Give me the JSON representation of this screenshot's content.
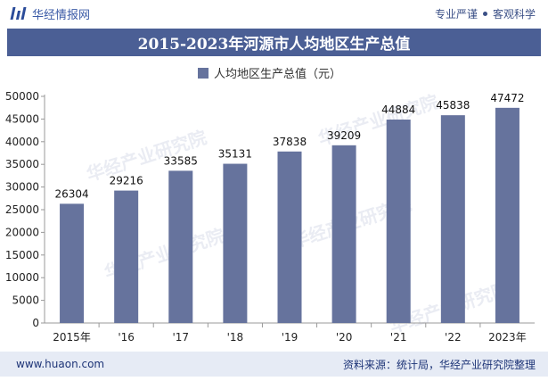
{
  "header": {
    "site_name": "华经情报网",
    "tagline_left": "专业严谨",
    "tagline_right": "客观科学"
  },
  "chart_data": {
    "type": "bar",
    "title": "2015-2023年河源市人均地区生产总值",
    "legend": "人均地区生产总值（元）",
    "legend_position": "top-center",
    "categories": [
      "2015年",
      "'16",
      "'17",
      "'18",
      "'19",
      "'20",
      "'21",
      "'22",
      "2023年"
    ],
    "series": [
      {
        "name": "人均地区生产总值（元）",
        "values": [
          26304,
          29216,
          33585,
          35131,
          37838,
          39209,
          44884,
          45838,
          47472
        ]
      }
    ],
    "ylim": [
      0,
      50000
    ],
    "yticks": [
      0,
      5000,
      10000,
      15000,
      20000,
      25000,
      30000,
      35000,
      40000,
      45000,
      50000
    ],
    "grid": false,
    "bar_color": "#66739d",
    "watermark": "华经产业研究院"
  },
  "footer": {
    "site": "www.huaon.com",
    "source": "资料来源：统计局，华经产业研究院整理"
  }
}
